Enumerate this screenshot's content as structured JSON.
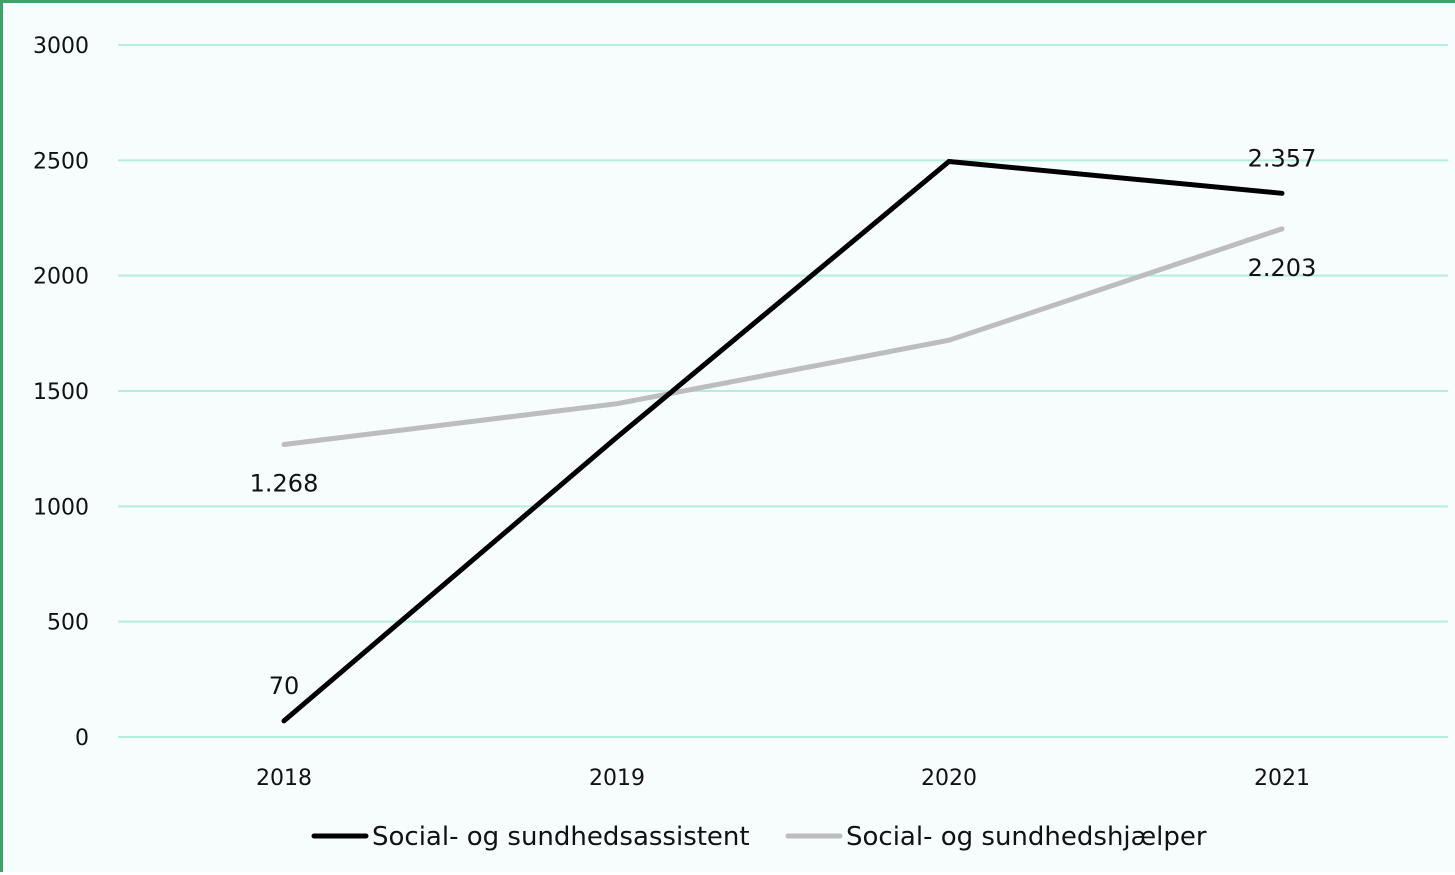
{
  "chart_data": {
    "type": "line",
    "title": "",
    "xlabel": "",
    "ylabel": "",
    "categories": [
      "2018",
      "2019",
      "2020",
      "2021"
    ],
    "ylim": [
      0,
      3000
    ],
    "yticks": [
      0,
      500,
      1000,
      1500,
      2000,
      2500,
      3000
    ],
    "grid": true,
    "legend_position": "bottom",
    "series": [
      {
        "name": "Social- og sundhedsassistent",
        "color": "#000000",
        "values": [
          70,
          1300,
          2495,
          2357
        ],
        "data_labels": {
          "0": "70",
          "3": "2.357"
        }
      },
      {
        "name": "Social- og sundhedshjælper",
        "color": "#bdbdbd",
        "values": [
          1268,
          1445,
          1720,
          2203
        ],
        "data_labels": {
          "0": "1.268",
          "3": "2.203"
        }
      }
    ],
    "colors": {
      "background": "#f7fcfc",
      "gridline": "#b6eedd",
      "border": "#3ea36a"
    }
  }
}
